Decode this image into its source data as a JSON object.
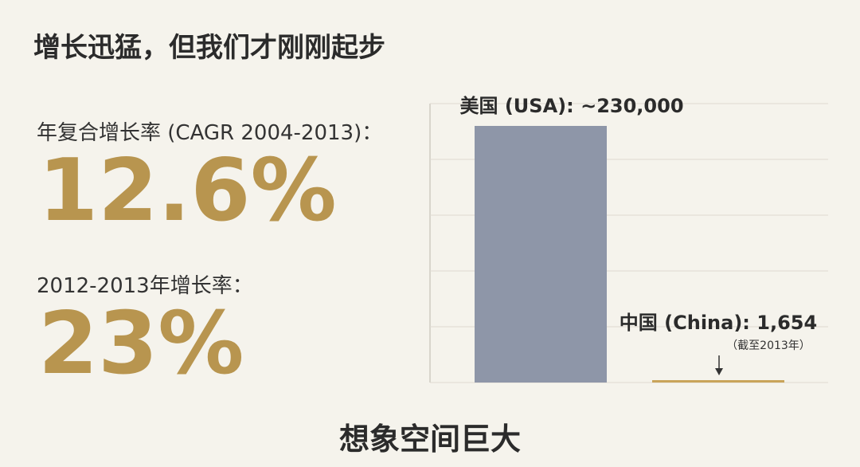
{
  "header": {
    "title": "增长迅猛，但我们才刚刚起步"
  },
  "stats": [
    {
      "label": "年复合增长率 (CAGR 2004-2013)：",
      "value": "12.6%"
    },
    {
      "label": "2012-2013年增长率：",
      "value": "23%"
    }
  ],
  "chart_data": {
    "type": "bar",
    "categories": [
      "美国 (USA):",
      "中国 (China):"
    ],
    "values": [
      230000,
      1654
    ],
    "value_labels": [
      "~230,000",
      "1,654"
    ],
    "colors": [
      "#8e96a8",
      "#c9a45a"
    ],
    "annotation": "（截至2013年）",
    "ylim": [
      0,
      250000
    ],
    "yticks": [
      0,
      50000,
      100000,
      150000,
      200000,
      250000
    ],
    "grid": true
  },
  "footer": {
    "text": "想象空间巨大"
  }
}
